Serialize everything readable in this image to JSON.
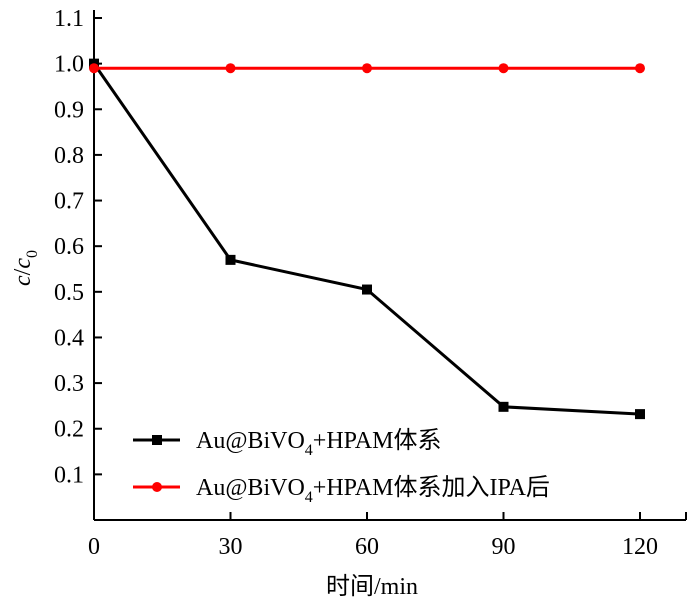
{
  "chart_data": {
    "type": "line",
    "x": [
      0,
      30,
      60,
      90,
      120
    ],
    "xlim": [
      0,
      130
    ],
    "ylim": [
      0,
      1.1
    ],
    "xticks": [
      "0",
      "30",
      "60",
      "90",
      "120"
    ],
    "yticks": [
      "0.1",
      "0.2",
      "0.3",
      "0.4",
      "0.5",
      "0.6",
      "0.7",
      "0.8",
      "0.9",
      "1.0",
      "1.1"
    ],
    "xlabel": "时间/min",
    "ylabel": {
      "c": "c",
      "slash": "/",
      "c0": "c",
      "sub": "0"
    },
    "grid": false,
    "legend_position": "bottom-left",
    "series": [
      {
        "name": {
          "pre": "Au@BiVO",
          "sub": "4",
          "post": "+HPAM体系"
        },
        "values": [
          1.0,
          0.57,
          0.505,
          0.248,
          0.232
        ],
        "color": "#000000",
        "marker": "square"
      },
      {
        "name": {
          "pre": "Au@BiVO",
          "sub": "4",
          "post": "+HPAM体系加入IPA后"
        },
        "values": [
          0.99,
          0.99,
          0.99,
          0.99,
          0.99
        ],
        "color": "#ff0000",
        "marker": "circle"
      }
    ]
  }
}
